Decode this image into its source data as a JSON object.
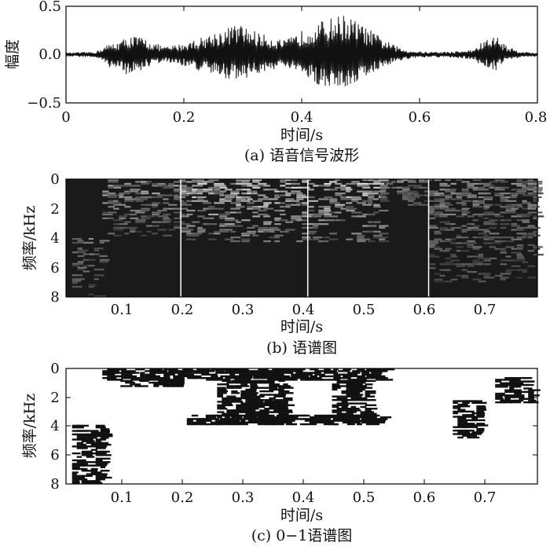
{
  "chart_data": [
    {
      "type": "line",
      "caption": "(a) 语音信号波形",
      "xlabel": "时间/s",
      "ylabel": "幅度",
      "xlim": [
        0,
        0.8
      ],
      "ylim": [
        -0.5,
        0.5
      ],
      "xticks": [
        "0",
        "0.2",
        "0.4",
        "0.6",
        "0.8"
      ],
      "yticks": [
        "0.5",
        "0.0",
        "−0.5"
      ],
      "envelope": {
        "x": [
          0.0,
          0.05,
          0.07,
          0.09,
          0.11,
          0.13,
          0.15,
          0.17,
          0.2,
          0.23,
          0.26,
          0.29,
          0.31,
          0.33,
          0.35,
          0.37,
          0.39,
          0.41,
          0.43,
          0.45,
          0.47,
          0.49,
          0.51,
          0.53,
          0.55,
          0.57,
          0.59,
          0.61,
          0.63,
          0.65,
          0.67,
          0.69,
          0.71,
          0.73,
          0.75,
          0.77,
          0.79,
          0.8
        ],
        "max": [
          0.02,
          0.03,
          0.1,
          0.14,
          0.2,
          0.18,
          0.12,
          0.08,
          0.12,
          0.18,
          0.25,
          0.32,
          0.28,
          0.22,
          0.18,
          0.15,
          0.2,
          0.3,
          0.34,
          0.38,
          0.42,
          0.36,
          0.28,
          0.2,
          0.12,
          0.06,
          0.04,
          0.03,
          0.03,
          0.03,
          0.04,
          0.05,
          0.15,
          0.2,
          0.08,
          0.04,
          0.02,
          0.02
        ],
        "min": [
          -0.02,
          -0.03,
          -0.12,
          -0.18,
          -0.22,
          -0.16,
          -0.1,
          -0.08,
          -0.12,
          -0.18,
          -0.24,
          -0.26,
          -0.24,
          -0.2,
          -0.16,
          -0.14,
          -0.18,
          -0.26,
          -0.32,
          -0.34,
          -0.36,
          -0.3,
          -0.22,
          -0.16,
          -0.1,
          -0.06,
          -0.04,
          -0.03,
          -0.03,
          -0.03,
          -0.04,
          -0.05,
          -0.14,
          -0.16,
          -0.06,
          -0.03,
          -0.02,
          -0.02
        ]
      }
    },
    {
      "type": "heatmap",
      "caption": "(b) 语谱图",
      "xlabel": "时间/s",
      "ylabel": "频率/kHz",
      "xlim": [
        0.01,
        0.79
      ],
      "ylim": [
        8,
        0
      ],
      "xticks": [
        "0.1",
        "0.2",
        "0.3",
        "0.4",
        "0.5",
        "0.6",
        "0.7"
      ],
      "yticks": [
        "0",
        "2",
        "4",
        "6",
        "8"
      ],
      "colormap": "gray",
      "segment_boundaries": [
        0.2,
        0.41,
        0.61
      ],
      "energy_regions": [
        {
          "t": [
            0.02,
            0.07
          ],
          "f": [
            4.0,
            8.0
          ],
          "level": 0.45
        },
        {
          "t": [
            0.07,
            0.2
          ],
          "f": [
            0.0,
            3.8
          ],
          "level": 0.55
        },
        {
          "t": [
            0.2,
            0.53
          ],
          "f": [
            0.0,
            4.2
          ],
          "level": 0.75
        },
        {
          "t": [
            0.53,
            0.61
          ],
          "f": [
            0.0,
            1.8
          ],
          "level": 0.5
        },
        {
          "t": [
            0.61,
            0.79
          ],
          "f": [
            0.0,
            7.0
          ],
          "level": 0.45
        }
      ]
    },
    {
      "type": "heatmap",
      "caption": "(c) 0−1语谱图",
      "xlabel": "时间/s",
      "ylabel": "频率/kHz",
      "xlim": [
        0.01,
        0.79
      ],
      "ylim": [
        8,
        0
      ],
      "xticks": [
        "0.1",
        "0.2",
        "0.3",
        "0.4",
        "0.5",
        "0.6",
        "0.7"
      ],
      "yticks": [
        "0",
        "2",
        "4",
        "6",
        "8"
      ],
      "colormap": "binary",
      "binary_regions": [
        {
          "t": [
            0.07,
            0.54
          ],
          "f": [
            0.0,
            0.8
          ]
        },
        {
          "t": [
            0.1,
            0.2
          ],
          "f": [
            0.8,
            1.2
          ]
        },
        {
          "t": [
            0.26,
            0.37
          ],
          "f": [
            0.8,
            3.8
          ]
        },
        {
          "t": [
            0.45,
            0.51
          ],
          "f": [
            0.8,
            3.6
          ]
        },
        {
          "t": [
            0.21,
            0.53
          ],
          "f": [
            3.2,
            3.9
          ]
        },
        {
          "t": [
            0.02,
            0.07
          ],
          "f": [
            3.9,
            7.9
          ]
        },
        {
          "t": [
            0.65,
            0.69
          ],
          "f": [
            2.2,
            4.8
          ]
        },
        {
          "t": [
            0.72,
            0.78
          ],
          "f": [
            0.6,
            2.4
          ]
        }
      ]
    }
  ]
}
